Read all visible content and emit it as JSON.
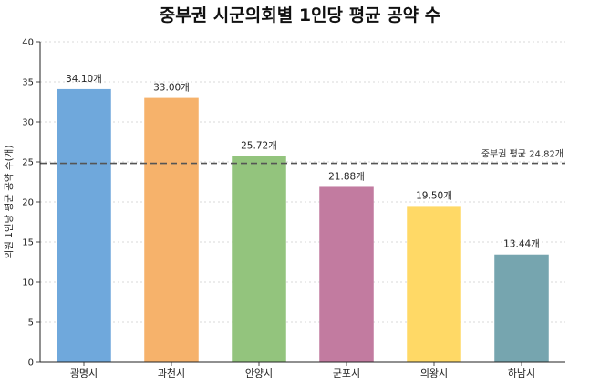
{
  "chart_data": {
    "type": "bar",
    "title": "중부권 시군의회별 1인당 평균 공약 수",
    "xlabel": "",
    "ylabel": "의원 1인당 평균 공약 수(개)",
    "categories": [
      "광명시",
      "과천시",
      "안양시",
      "군포시",
      "의왕시",
      "하남시"
    ],
    "values": [
      34.1,
      33.0,
      25.72,
      21.88,
      19.5,
      13.44
    ],
    "value_labels": [
      "34.10개",
      "33.00개",
      "25.72개",
      "21.88개",
      "19.50개",
      "13.44개"
    ],
    "colors": [
      "#6fa8dc",
      "#f6b26b",
      "#93c47d",
      "#c27ba0",
      "#ffd966",
      "#76a5af"
    ],
    "ylim": [
      0,
      40
    ],
    "yticks": [
      "0",
      "5",
      "10",
      "15",
      "20",
      "25",
      "30",
      "35",
      "40"
    ],
    "reference_line": {
      "value": 24.82,
      "label": "중부권 평균 24.82개",
      "style": "dashed",
      "color": "#555555"
    },
    "grid": "y-dotted",
    "legend": "none"
  }
}
